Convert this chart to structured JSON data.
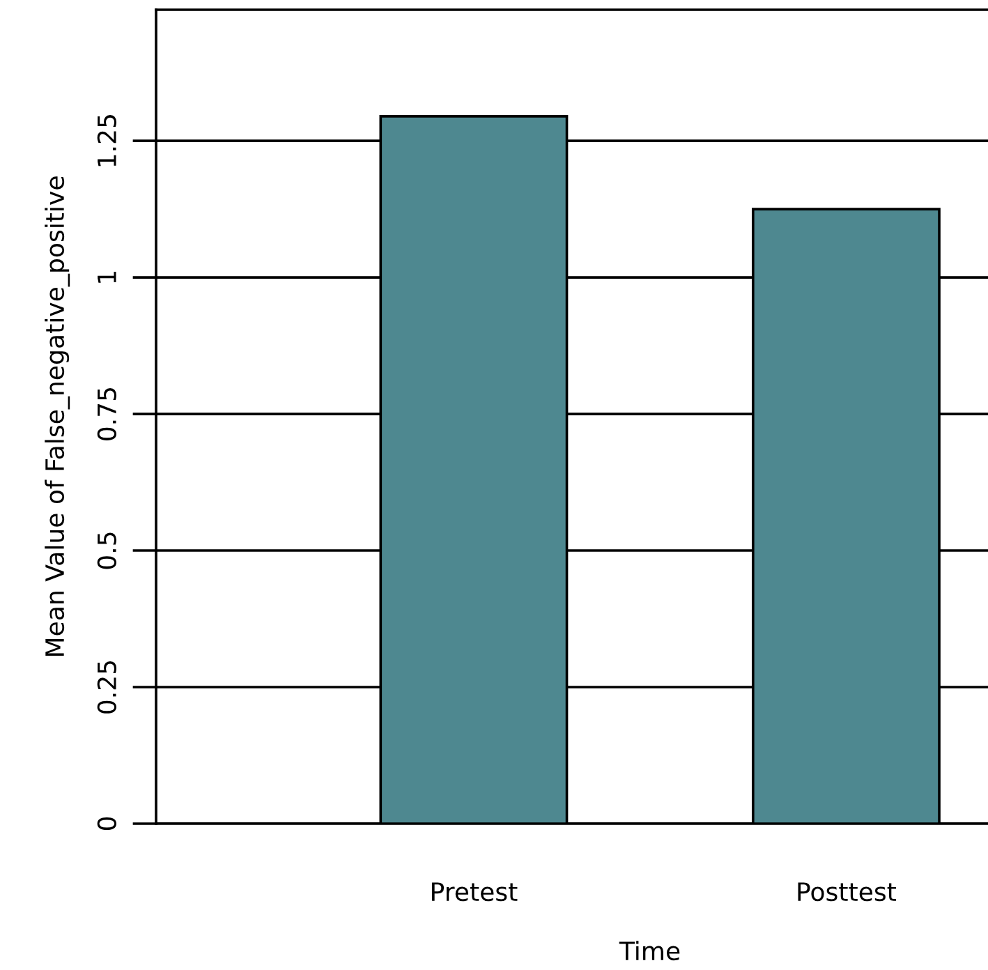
{
  "chart_data": {
    "type": "bar",
    "xlabel": "Time",
    "ylabel": "Mean Value of False_negative_positive",
    "categories": [
      "Pretest",
      "Posttest"
    ],
    "values": [
      1.295,
      1.125
    ],
    "color": "#4e8890",
    "ylim": [
      0,
      1.49
    ],
    "yticks": [
      0,
      {
        "value": 0.25,
        "label": "0.25"
      },
      {
        "value": 0.5,
        "label": "0.5"
      },
      {
        "value": 0.75,
        "label": "0.75"
      },
      1,
      {
        "value": 1.25,
        "label": "1.25"
      }
    ],
    "grid": "y"
  }
}
